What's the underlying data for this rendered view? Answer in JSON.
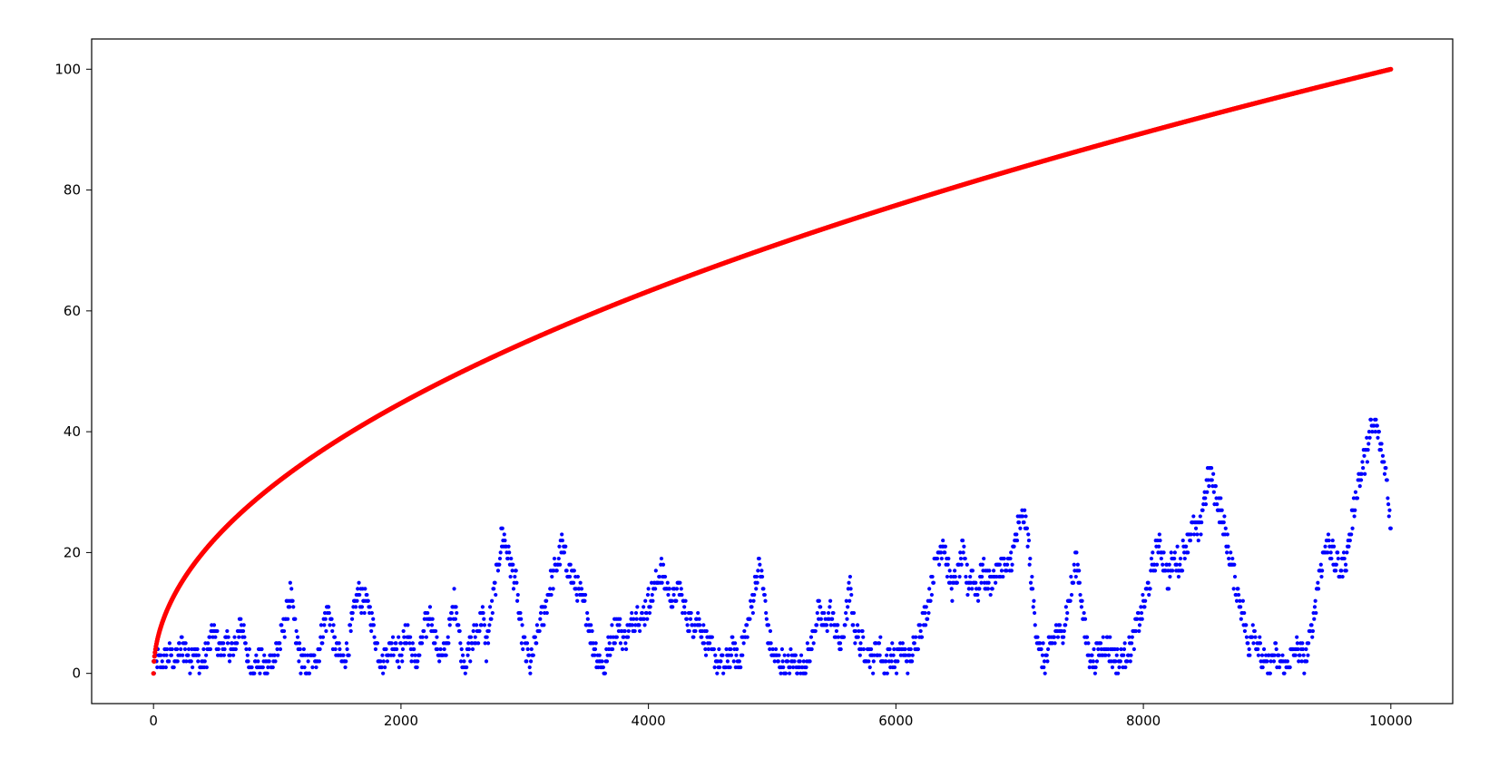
{
  "chart_data": {
    "type": "scatter",
    "title": "",
    "xlabel": "",
    "ylabel": "",
    "xlim": [
      -500,
      10500
    ],
    "ylim": [
      -5,
      105
    ],
    "grid": false,
    "xticks": [
      0,
      2000,
      4000,
      6000,
      8000,
      10000
    ],
    "yticks": [
      0,
      20,
      40,
      60,
      80,
      100
    ],
    "xtick_labels": [
      "0",
      "2000",
      "4000",
      "6000",
      "8000",
      "10000"
    ],
    "ytick_labels": [
      "0",
      "20",
      "40",
      "60",
      "80",
      "100"
    ],
    "series": [
      {
        "color": "#ff0000",
        "marker": "dot",
        "function": "y = sqrt(x)",
        "x_range": [
          0,
          10000
        ]
      },
      {
        "color": "#0000ff",
        "marker": "dot",
        "kind": "integer random walk, absolute value (points every ~25 steps, band of ~±2 around the anchor path)",
        "x_range": [
          0,
          10000
        ],
        "points": [
          [
            0,
            1
          ],
          [
            60,
            2
          ],
          [
            120,
            3
          ],
          [
            180,
            2
          ],
          [
            230,
            5
          ],
          [
            290,
            2
          ],
          [
            330,
            4
          ],
          [
            380,
            1
          ],
          [
            430,
            3
          ],
          [
            480,
            7
          ],
          [
            540,
            4
          ],
          [
            590,
            5
          ],
          [
            650,
            3
          ],
          [
            710,
            9
          ],
          [
            750,
            3
          ],
          [
            800,
            1
          ],
          [
            860,
            2
          ],
          [
            920,
            1
          ],
          [
            980,
            3
          ],
          [
            1020,
            5
          ],
          [
            1070,
            9
          ],
          [
            1110,
            13
          ],
          [
            1150,
            6
          ],
          [
            1190,
            2
          ],
          [
            1240,
            1
          ],
          [
            1290,
            2
          ],
          [
            1340,
            4
          ],
          [
            1390,
            9
          ],
          [
            1420,
            11
          ],
          [
            1450,
            6
          ],
          [
            1490,
            3
          ],
          [
            1530,
            2
          ],
          [
            1570,
            4
          ],
          [
            1610,
            9
          ],
          [
            1650,
            13
          ],
          [
            1700,
            12
          ],
          [
            1740,
            11
          ],
          [
            1780,
            7
          ],
          [
            1820,
            3
          ],
          [
            1860,
            2
          ],
          [
            1900,
            4
          ],
          [
            1950,
            5
          ],
          [
            1990,
            3
          ],
          [
            2050,
            7
          ],
          [
            2090,
            3
          ],
          [
            2140,
            2
          ],
          [
            2200,
            8
          ],
          [
            2240,
            10
          ],
          [
            2290,
            4
          ],
          [
            2340,
            2
          ],
          [
            2390,
            7
          ],
          [
            2430,
            12
          ],
          [
            2460,
            9
          ],
          [
            2490,
            3
          ],
          [
            2530,
            2
          ],
          [
            2570,
            5
          ],
          [
            2620,
            7
          ],
          [
            2660,
            10
          ],
          [
            2690,
            4
          ],
          [
            2730,
            10
          ],
          [
            2780,
            17
          ],
          [
            2820,
            23
          ],
          [
            2860,
            20
          ],
          [
            2900,
            17
          ],
          [
            2930,
            15
          ],
          [
            2960,
            8
          ],
          [
            3000,
            4
          ],
          [
            3050,
            1
          ],
          [
            3100,
            6
          ],
          [
            3150,
            10
          ],
          [
            3200,
            14
          ],
          [
            3260,
            18
          ],
          [
            3300,
            21
          ],
          [
            3340,
            18
          ],
          [
            3380,
            16
          ],
          [
            3420,
            14
          ],
          [
            3460,
            12
          ],
          [
            3500,
            10
          ],
          [
            3550,
            5
          ],
          [
            3600,
            2
          ],
          [
            3650,
            1
          ],
          [
            3700,
            6
          ],
          [
            3750,
            8
          ],
          [
            3800,
            6
          ],
          [
            3850,
            7
          ],
          [
            3900,
            10
          ],
          [
            3950,
            9
          ],
          [
            4000,
            12
          ],
          [
            4050,
            14
          ],
          [
            4100,
            17
          ],
          [
            4150,
            14
          ],
          [
            4200,
            12
          ],
          [
            4250,
            14
          ],
          [
            4300,
            10
          ],
          [
            4350,
            8
          ],
          [
            4400,
            9
          ],
          [
            4450,
            6
          ],
          [
            4500,
            4
          ],
          [
            4560,
            2
          ],
          [
            4620,
            1
          ],
          [
            4680,
            4
          ],
          [
            4730,
            2
          ],
          [
            4780,
            6
          ],
          [
            4830,
            10
          ],
          [
            4870,
            16
          ],
          [
            4900,
            18
          ],
          [
            4940,
            12
          ],
          [
            4970,
            6
          ],
          [
            5010,
            3
          ],
          [
            5060,
            2
          ],
          [
            5120,
            1
          ],
          [
            5180,
            2
          ],
          [
            5240,
            1
          ],
          [
            5300,
            3
          ],
          [
            5340,
            7
          ],
          [
            5370,
            10
          ],
          [
            5420,
            8
          ],
          [
            5470,
            10
          ],
          [
            5520,
            7
          ],
          [
            5560,
            4
          ],
          [
            5600,
            10
          ],
          [
            5630,
            14
          ],
          [
            5660,
            8
          ],
          [
            5710,
            5
          ],
          [
            5760,
            4
          ],
          [
            5810,
            2
          ],
          [
            5860,
            5
          ],
          [
            5900,
            1
          ],
          [
            5950,
            3
          ],
          [
            6000,
            2
          ],
          [
            6050,
            4
          ],
          [
            6100,
            2
          ],
          [
            6150,
            4
          ],
          [
            6200,
            8
          ],
          [
            6250,
            10
          ],
          [
            6290,
            15
          ],
          [
            6330,
            19
          ],
          [
            6380,
            22
          ],
          [
            6420,
            17
          ],
          [
            6460,
            14
          ],
          [
            6500,
            16
          ],
          [
            6540,
            20
          ],
          [
            6580,
            15
          ],
          [
            6620,
            16
          ],
          [
            6660,
            13
          ],
          [
            6700,
            17
          ],
          [
            6750,
            15
          ],
          [
            6800,
            16
          ],
          [
            6850,
            18
          ],
          [
            6900,
            17
          ],
          [
            6950,
            20
          ],
          [
            6990,
            24
          ],
          [
            7030,
            26
          ],
          [
            7070,
            22
          ],
          [
            7100,
            14
          ],
          [
            7130,
            8
          ],
          [
            7170,
            3
          ],
          [
            7210,
            2
          ],
          [
            7260,
            5
          ],
          [
            7300,
            7
          ],
          [
            7340,
            6
          ],
          [
            7380,
            10
          ],
          [
            7420,
            14
          ],
          [
            7460,
            19
          ],
          [
            7490,
            14
          ],
          [
            7520,
            8
          ],
          [
            7560,
            3
          ],
          [
            7600,
            2
          ],
          [
            7650,
            4
          ],
          [
            7700,
            5
          ],
          [
            7750,
            3
          ],
          [
            7800,
            2
          ],
          [
            7850,
            3
          ],
          [
            7900,
            4
          ],
          [
            7950,
            8
          ],
          [
            8000,
            11
          ],
          [
            8040,
            14
          ],
          [
            8080,
            18
          ],
          [
            8120,
            21
          ],
          [
            8160,
            19
          ],
          [
            8200,
            16
          ],
          [
            8250,
            19
          ],
          [
            8300,
            18
          ],
          [
            8350,
            22
          ],
          [
            8400,
            24
          ],
          [
            8450,
            23
          ],
          [
            8500,
            30
          ],
          [
            8540,
            33
          ],
          [
            8580,
            30
          ],
          [
            8620,
            27
          ],
          [
            8660,
            23
          ],
          [
            8700,
            19
          ],
          [
            8740,
            15
          ],
          [
            8780,
            12
          ],
          [
            8820,
            8
          ],
          [
            8850,
            4
          ],
          [
            8880,
            8
          ],
          [
            8920,
            5
          ],
          [
            8960,
            2
          ],
          [
            9000,
            1
          ],
          [
            9050,
            3
          ],
          [
            9100,
            2
          ],
          [
            9150,
            1
          ],
          [
            9200,
            3
          ],
          [
            9250,
            4
          ],
          [
            9300,
            2
          ],
          [
            9340,
            5
          ],
          [
            9380,
            10
          ],
          [
            9420,
            16
          ],
          [
            9460,
            20
          ],
          [
            9500,
            22
          ],
          [
            9550,
            18
          ],
          [
            9600,
            17
          ],
          [
            9640,
            19
          ],
          [
            9680,
            24
          ],
          [
            9720,
            30
          ],
          [
            9760,
            33
          ],
          [
            9800,
            36
          ],
          [
            9840,
            40
          ],
          [
            9880,
            41
          ],
          [
            9920,
            37
          ],
          [
            9950,
            35
          ],
          [
            9980,
            29
          ],
          [
            10000,
            24
          ]
        ]
      }
    ]
  }
}
